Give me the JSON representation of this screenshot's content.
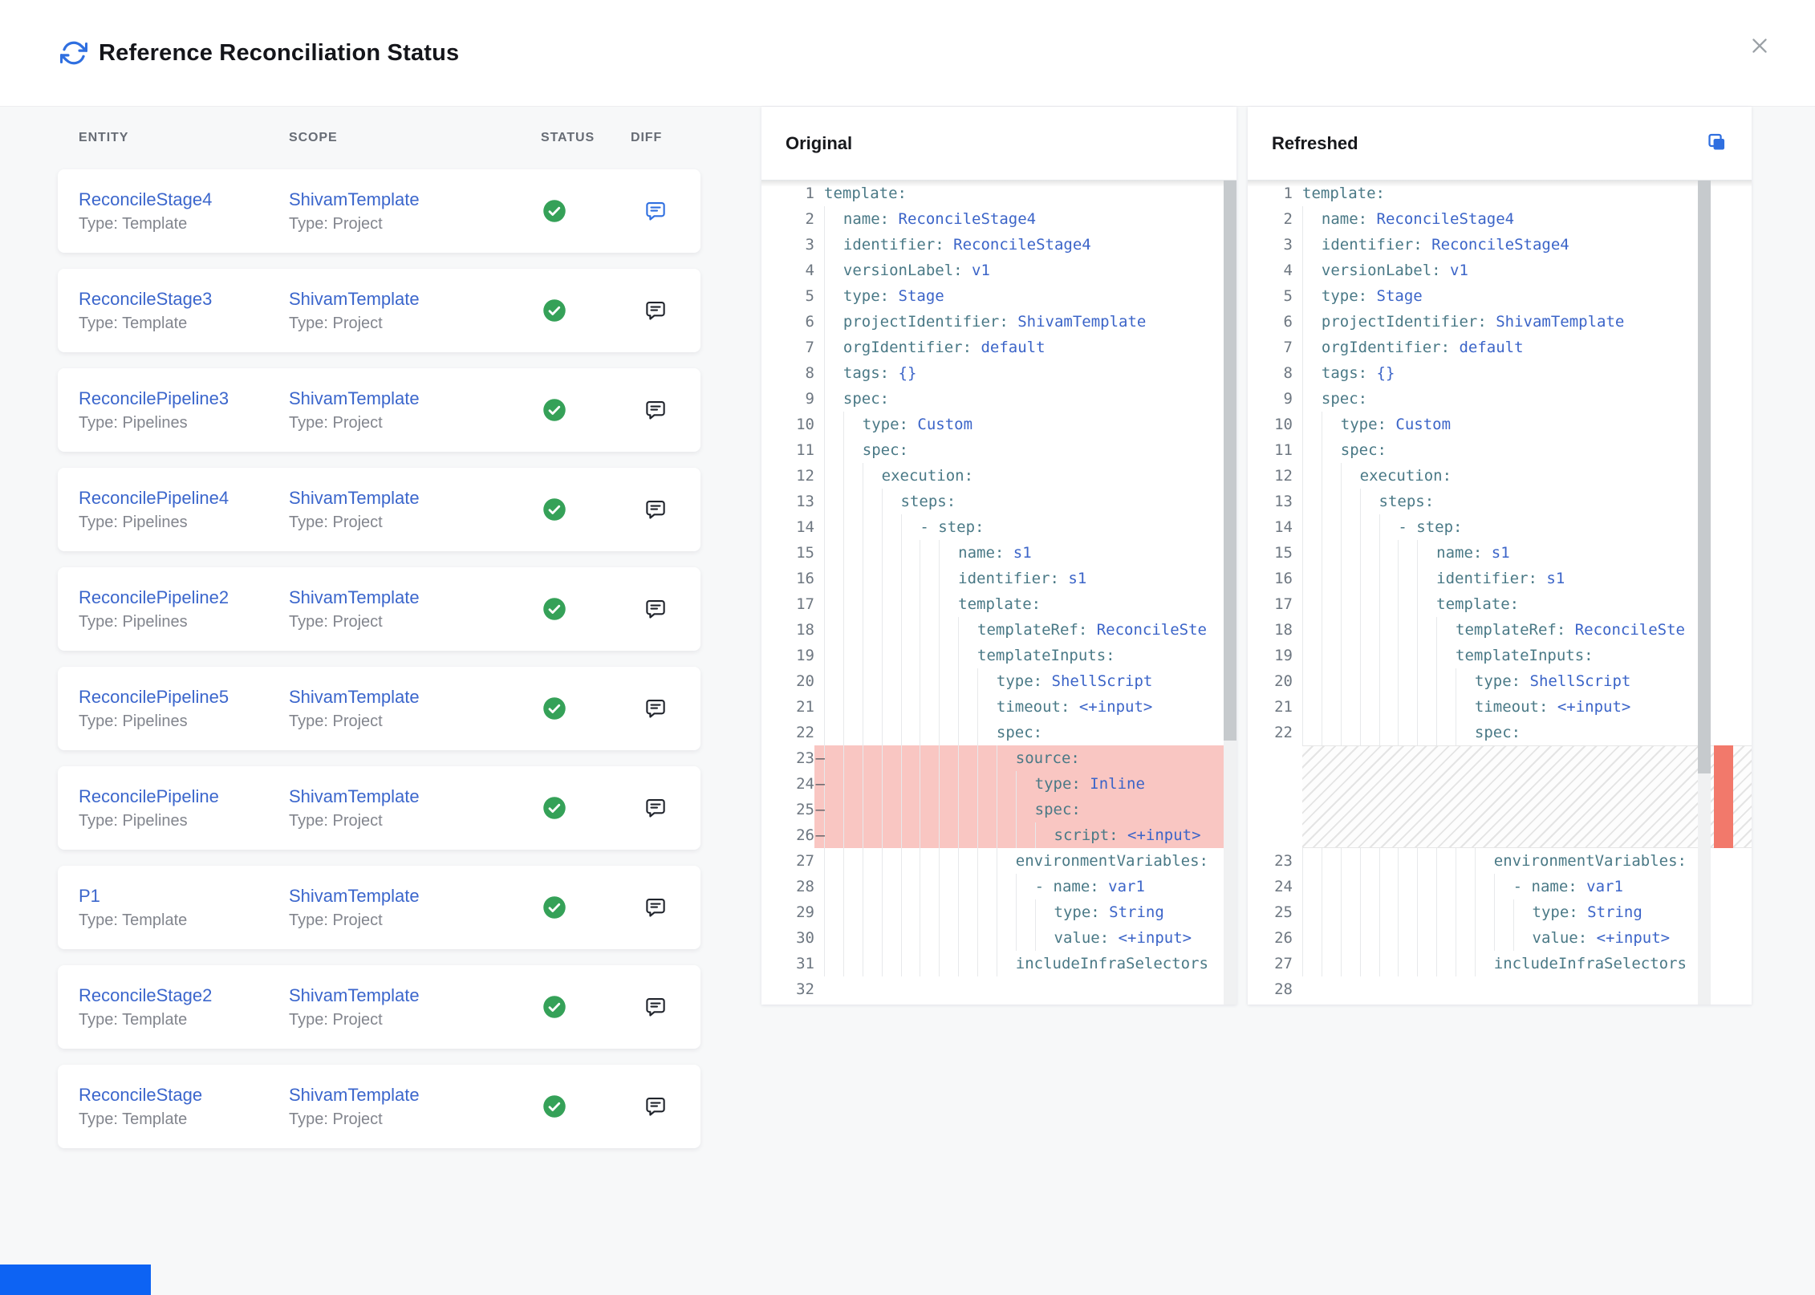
{
  "header": {
    "title": "Reference Reconciliation Status"
  },
  "table": {
    "columns": [
      "ENTITY",
      "SCOPE",
      "STATUS",
      "DIFF"
    ],
    "rows": [
      {
        "entity": "ReconcileStage4",
        "entity_type": "Type: Template",
        "scope": "ShivamTemplate",
        "scope_type": "Type: Project",
        "status": "success",
        "diff_active": true
      },
      {
        "entity": "ReconcileStage3",
        "entity_type": "Type: Template",
        "scope": "ShivamTemplate",
        "scope_type": "Type: Project",
        "status": "success",
        "diff_active": false
      },
      {
        "entity": "ReconcilePipeline3",
        "entity_type": "Type: Pipelines",
        "scope": "ShivamTemplate",
        "scope_type": "Type: Project",
        "status": "success",
        "diff_active": false
      },
      {
        "entity": "ReconcilePipeline4",
        "entity_type": "Type: Pipelines",
        "scope": "ShivamTemplate",
        "scope_type": "Type: Project",
        "status": "success",
        "diff_active": false
      },
      {
        "entity": "ReconcilePipeline2",
        "entity_type": "Type: Pipelines",
        "scope": "ShivamTemplate",
        "scope_type": "Type: Project",
        "status": "success",
        "diff_active": false
      },
      {
        "entity": "ReconcilePipeline5",
        "entity_type": "Type: Pipelines",
        "scope": "ShivamTemplate",
        "scope_type": "Type: Project",
        "status": "success",
        "diff_active": false
      },
      {
        "entity": "ReconcilePipeline",
        "entity_type": "Type: Pipelines",
        "scope": "ShivamTemplate",
        "scope_type": "Type: Project",
        "status": "success",
        "diff_active": false
      },
      {
        "entity": "P1",
        "entity_type": "Type: Template",
        "scope": "ShivamTemplate",
        "scope_type": "Type: Project",
        "status": "success",
        "diff_active": false
      },
      {
        "entity": "ReconcileStage2",
        "entity_type": "Type: Template",
        "scope": "ShivamTemplate",
        "scope_type": "Type: Project",
        "status": "success",
        "diff_active": false
      },
      {
        "entity": "ReconcileStage",
        "entity_type": "Type: Template",
        "scope": "ShivamTemplate",
        "scope_type": "Type: Project",
        "status": "success",
        "diff_active": false
      }
    ]
  },
  "diff": {
    "original": {
      "title": "Original",
      "lines": [
        {
          "n": 1,
          "ind": 0,
          "segs": [
            [
              "k",
              "template:"
            ]
          ]
        },
        {
          "n": 2,
          "ind": 2,
          "segs": [
            [
              "k",
              "name:"
            ],
            [
              "v",
              " ReconcileStage4"
            ]
          ]
        },
        {
          "n": 3,
          "ind": 2,
          "segs": [
            [
              "k",
              "identifier:"
            ],
            [
              "v",
              " ReconcileStage4"
            ]
          ]
        },
        {
          "n": 4,
          "ind": 2,
          "segs": [
            [
              "k",
              "versionLabel:"
            ],
            [
              "v",
              " v1"
            ]
          ]
        },
        {
          "n": 5,
          "ind": 2,
          "segs": [
            [
              "k",
              "type:"
            ],
            [
              "v",
              " Stage"
            ]
          ]
        },
        {
          "n": 6,
          "ind": 2,
          "segs": [
            [
              "k",
              "projectIdentifier:"
            ],
            [
              "v",
              " ShivamTemplate"
            ]
          ]
        },
        {
          "n": 7,
          "ind": 2,
          "segs": [
            [
              "k",
              "orgIdentifier:"
            ],
            [
              "v",
              " default"
            ]
          ]
        },
        {
          "n": 8,
          "ind": 2,
          "segs": [
            [
              "k",
              "tags:"
            ],
            [
              "v",
              " {}"
            ]
          ]
        },
        {
          "n": 9,
          "ind": 2,
          "segs": [
            [
              "k",
              "spec:"
            ]
          ]
        },
        {
          "n": 10,
          "ind": 4,
          "segs": [
            [
              "k",
              "type:"
            ],
            [
              "v",
              " Custom"
            ]
          ]
        },
        {
          "n": 11,
          "ind": 4,
          "segs": [
            [
              "k",
              "spec:"
            ]
          ]
        },
        {
          "n": 12,
          "ind": 6,
          "segs": [
            [
              "k",
              "execution:"
            ]
          ]
        },
        {
          "n": 13,
          "ind": 8,
          "segs": [
            [
              "k",
              "steps:"
            ]
          ]
        },
        {
          "n": 14,
          "ind": 10,
          "segs": [
            [
              "k",
              "- step:"
            ]
          ]
        },
        {
          "n": 15,
          "ind": 14,
          "segs": [
            [
              "k",
              "name:"
            ],
            [
              "v",
              " s1"
            ]
          ]
        },
        {
          "n": 16,
          "ind": 14,
          "segs": [
            [
              "k",
              "identifier:"
            ],
            [
              "v",
              " s1"
            ]
          ]
        },
        {
          "n": 17,
          "ind": 14,
          "segs": [
            [
              "k",
              "template:"
            ]
          ]
        },
        {
          "n": 18,
          "ind": 16,
          "segs": [
            [
              "k",
              "templateRef:"
            ],
            [
              "v",
              " ReconcileSte"
            ]
          ]
        },
        {
          "n": 19,
          "ind": 16,
          "segs": [
            [
              "k",
              "templateInputs:"
            ]
          ]
        },
        {
          "n": 20,
          "ind": 18,
          "segs": [
            [
              "k",
              "type:"
            ],
            [
              "v",
              " ShellScript"
            ]
          ]
        },
        {
          "n": 21,
          "ind": 18,
          "segs": [
            [
              "k",
              "timeout:"
            ],
            [
              "v",
              " <+input>"
            ]
          ]
        },
        {
          "n": 22,
          "ind": 18,
          "segs": [
            [
              "k",
              "spec:"
            ]
          ]
        },
        {
          "n": 23,
          "ind": 20,
          "del": true,
          "segs": [
            [
              "k",
              "source:"
            ]
          ]
        },
        {
          "n": 24,
          "ind": 22,
          "del": true,
          "segs": [
            [
              "k",
              "type:"
            ],
            [
              "v",
              " Inline"
            ]
          ]
        },
        {
          "n": 25,
          "ind": 22,
          "del": true,
          "segs": [
            [
              "k",
              "spec:"
            ]
          ]
        },
        {
          "n": 26,
          "ind": 24,
          "del": true,
          "segs": [
            [
              "k",
              "script:"
            ],
            [
              "v",
              " <+input>"
            ]
          ]
        },
        {
          "n": 27,
          "ind": 20,
          "segs": [
            [
              "k",
              "environmentVariables:"
            ]
          ]
        },
        {
          "n": 28,
          "ind": 22,
          "segs": [
            [
              "k",
              "- name:"
            ],
            [
              "v",
              " var1"
            ]
          ]
        },
        {
          "n": 29,
          "ind": 24,
          "segs": [
            [
              "k",
              "type:"
            ],
            [
              "v",
              " String"
            ]
          ]
        },
        {
          "n": 30,
          "ind": 24,
          "segs": [
            [
              "k",
              "value:"
            ],
            [
              "v",
              " <+input>"
            ]
          ]
        },
        {
          "n": 31,
          "ind": 20,
          "segs": [
            [
              "k",
              "includeInfraSelectors"
            ]
          ]
        },
        {
          "n": 32,
          "ind": 0,
          "segs": []
        }
      ]
    },
    "refreshed": {
      "title": "Refreshed",
      "lines": [
        {
          "n": 1,
          "ind": 0,
          "segs": [
            [
              "k",
              "template:"
            ]
          ]
        },
        {
          "n": 2,
          "ind": 2,
          "segs": [
            [
              "k",
              "name:"
            ],
            [
              "v",
              " ReconcileStage4"
            ]
          ]
        },
        {
          "n": 3,
          "ind": 2,
          "segs": [
            [
              "k",
              "identifier:"
            ],
            [
              "v",
              " ReconcileStage4"
            ]
          ]
        },
        {
          "n": 4,
          "ind": 2,
          "segs": [
            [
              "k",
              "versionLabel:"
            ],
            [
              "v",
              " v1"
            ]
          ]
        },
        {
          "n": 5,
          "ind": 2,
          "segs": [
            [
              "k",
              "type:"
            ],
            [
              "v",
              " Stage"
            ]
          ]
        },
        {
          "n": 6,
          "ind": 2,
          "segs": [
            [
              "k",
              "projectIdentifier:"
            ],
            [
              "v",
              " ShivamTemplate"
            ]
          ]
        },
        {
          "n": 7,
          "ind": 2,
          "segs": [
            [
              "k",
              "orgIdentifier:"
            ],
            [
              "v",
              " default"
            ]
          ]
        },
        {
          "n": 8,
          "ind": 2,
          "segs": [
            [
              "k",
              "tags:"
            ],
            [
              "v",
              " {}"
            ]
          ]
        },
        {
          "n": 9,
          "ind": 2,
          "segs": [
            [
              "k",
              "spec:"
            ]
          ]
        },
        {
          "n": 10,
          "ind": 4,
          "segs": [
            [
              "k",
              "type:"
            ],
            [
              "v",
              " Custom"
            ]
          ]
        },
        {
          "n": 11,
          "ind": 4,
          "segs": [
            [
              "k",
              "spec:"
            ]
          ]
        },
        {
          "n": 12,
          "ind": 6,
          "segs": [
            [
              "k",
              "execution:"
            ]
          ]
        },
        {
          "n": 13,
          "ind": 8,
          "segs": [
            [
              "k",
              "steps:"
            ]
          ]
        },
        {
          "n": 14,
          "ind": 10,
          "segs": [
            [
              "k",
              "- step:"
            ]
          ]
        },
        {
          "n": 15,
          "ind": 14,
          "segs": [
            [
              "k",
              "name:"
            ],
            [
              "v",
              " s1"
            ]
          ]
        },
        {
          "n": 16,
          "ind": 14,
          "segs": [
            [
              "k",
              "identifier:"
            ],
            [
              "v",
              " s1"
            ]
          ]
        },
        {
          "n": 17,
          "ind": 14,
          "segs": [
            [
              "k",
              "template:"
            ]
          ]
        },
        {
          "n": 18,
          "ind": 16,
          "segs": [
            [
              "k",
              "templateRef:"
            ],
            [
              "v",
              " ReconcileSte"
            ]
          ]
        },
        {
          "n": 19,
          "ind": 16,
          "segs": [
            [
              "k",
              "templateInputs:"
            ]
          ]
        },
        {
          "n": 20,
          "ind": 18,
          "segs": [
            [
              "k",
              "type:"
            ],
            [
              "v",
              " ShellScript"
            ]
          ]
        },
        {
          "n": 21,
          "ind": 18,
          "segs": [
            [
              "k",
              "timeout:"
            ],
            [
              "v",
              " <+input>"
            ]
          ]
        },
        {
          "n": 22,
          "ind": 18,
          "segs": [
            [
              "k",
              "spec:"
            ]
          ]
        },
        {
          "collapsed": true,
          "rows": 4
        },
        {
          "n": 23,
          "ind": 20,
          "segs": [
            [
              "k",
              "environmentVariables:"
            ]
          ]
        },
        {
          "n": 24,
          "ind": 22,
          "segs": [
            [
              "k",
              "- name:"
            ],
            [
              "v",
              " var1"
            ]
          ]
        },
        {
          "n": 25,
          "ind": 24,
          "segs": [
            [
              "k",
              "type:"
            ],
            [
              "v",
              " String"
            ]
          ]
        },
        {
          "n": 26,
          "ind": 24,
          "segs": [
            [
              "k",
              "value:"
            ],
            [
              "v",
              " <+input>"
            ]
          ]
        },
        {
          "n": 27,
          "ind": 20,
          "segs": [
            [
              "k",
              "includeInfraSelectors"
            ]
          ]
        },
        {
          "n": 28,
          "ind": 0,
          "segs": []
        }
      ]
    }
  },
  "colors": {
    "accent_blue": "#2f6fe0",
    "link_blue": "#3b66cc",
    "success_green": "#35a158",
    "deleted_line_red": "#f0695e",
    "overview_marker_red": "#f2796b",
    "code_key": "#4a7986",
    "code_value": "#3b64c8",
    "bottom_bar_blue": "#0d63f3"
  }
}
